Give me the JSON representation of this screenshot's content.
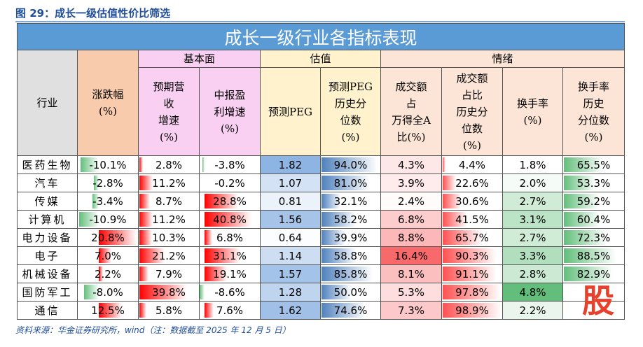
{
  "caption": "图 29：成长一级估值性价比筛选",
  "table_title": "成长一级行业各指标表现",
  "groups": {
    "fund": "基本面",
    "val": "估值",
    "mood": "情绪"
  },
  "headers": [
    "行业",
    "涨跌幅\n(%)",
    "预期营\n收\n增速\n(%)",
    "中报盈\n利增速\n(%)",
    "预测PEG",
    "预测PEG\n历史分\n位数\n(%)",
    "成交额\n占\n万得全A\n比(%)",
    "成交额\n占比\n历史分\n位数\n(%)",
    "换手率\n(%)",
    "换手率\n历史\n分位数\n(%)"
  ],
  "rows": [
    [
      "医药生物",
      "-10.1%",
      "2.8%",
      "-3.8%",
      "1.82",
      "94.0%",
      "4.3%",
      "4.4%",
      "1.8%",
      "65.5%"
    ],
    [
      "汽车",
      "-2.8%",
      "11.2%",
      "-0.2%",
      "1.07",
      "81.0%",
      "3.9%",
      "22.6%",
      "2.0%",
      "53.3%"
    ],
    [
      "传媒",
      "-3.4%",
      "8.7%",
      "28.8%",
      "0.81",
      "32.1%",
      "2.4%",
      "30.6%",
      "2.7%",
      "59.2%"
    ],
    [
      "计算机",
      "-10.9%",
      "11.2%",
      "40.8%",
      "1.56",
      "58.2%",
      "6.8%",
      "41.5%",
      "3.1%",
      "60.4%"
    ],
    [
      "电力设备",
      "20.8%",
      "10.3%",
      "6.8%",
      "0.64",
      "39.9%",
      "8.8%",
      "65.7%",
      "2.7%",
      "72.3%"
    ],
    [
      "电子",
      "7.0%",
      "21.2%",
      "31.1%",
      "1.14",
      "58.8%",
      "16.4%",
      "90.3%",
      "3.3%",
      "88.5%"
    ],
    [
      "机械设备",
      "2.2%",
      "7.9%",
      "19.1%",
      "1.57",
      "85.8%",
      "8.1%",
      "91.1%",
      "2.8%",
      "82.9%"
    ],
    [
      "国防军工",
      "-8.0%",
      "39.8%",
      "-8.6%",
      "1.28",
      "50.0%",
      "5.3%",
      "97.8%",
      "4.8%",
      ""
    ],
    [
      "通信",
      "12.5%",
      "5.8%",
      "7.6%",
      "1.62",
      "74.6%",
      "7.3%",
      "98.9%",
      "2.2%",
      ""
    ]
  ],
  "source": "资料来源：华金证券研究所，wind（注：数据截至 2025 年 12 月 5 日）",
  "watermark": "股",
  "colors": {
    "title": "#5b9bd5",
    "pos_bar": "#ff0000",
    "neg_bar": "#63be7b",
    "peg_bar": "#4f81bd"
  }
}
